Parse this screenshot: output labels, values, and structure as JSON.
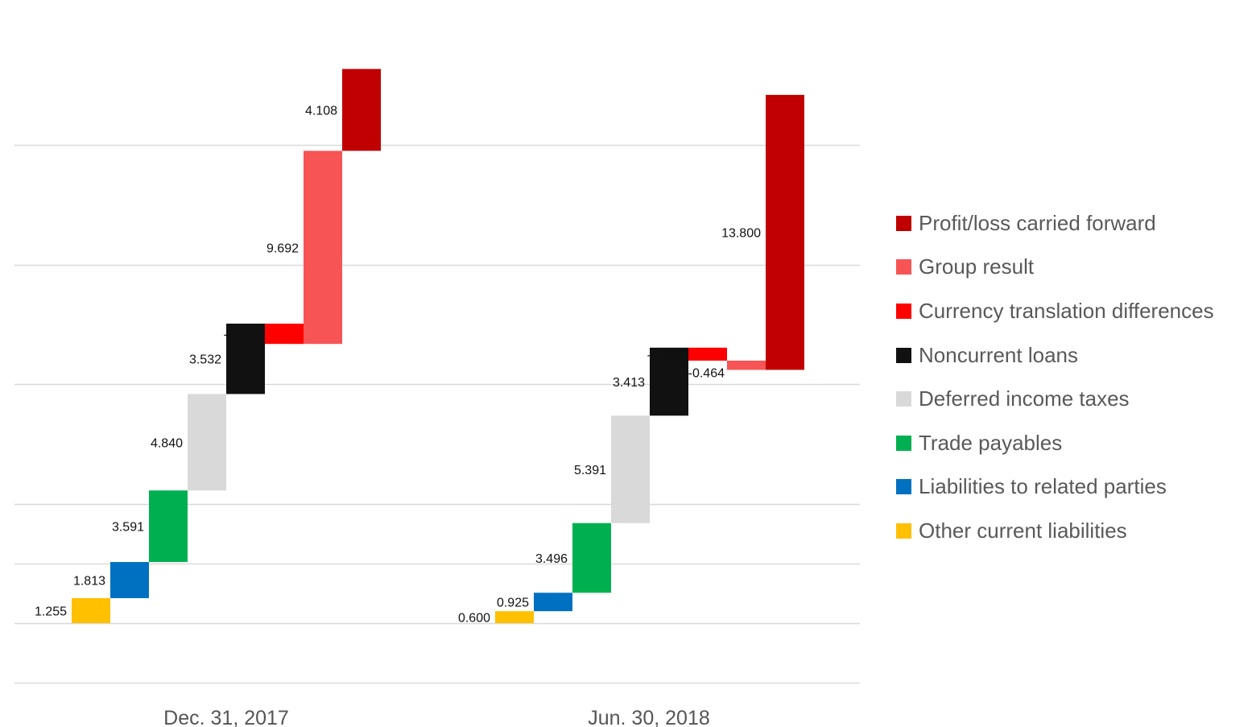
{
  "chart_data": {
    "type": "waterfall",
    "categories": [
      "Dec. 31, 2017",
      "Jun. 30, 2018"
    ],
    "grid": true,
    "legend_position": "right",
    "series": [
      {
        "name": "Other current liabilities",
        "color": "#FFC000",
        "values": [
          1.255,
          0.6
        ],
        "labels": [
          "1.255",
          "0.600"
        ]
      },
      {
        "name": "Liabilities to related parties",
        "color": "#0070C0",
        "values": [
          1.813,
          0.925
        ],
        "labels": [
          "1.813",
          "0.925"
        ]
      },
      {
        "name": "Trade payables",
        "color": "#00B050",
        "values": [
          3.591,
          3.496
        ],
        "labels": [
          "3.591",
          "3.496"
        ]
      },
      {
        "name": "Deferred income taxes",
        "color": "#D9D9D9",
        "values": [
          4.84,
          5.391
        ],
        "labels": [
          "4.840",
          "5.391"
        ]
      },
      {
        "name": "Noncurrent loans",
        "color": "#111111",
        "values": [
          3.532,
          3.413
        ],
        "labels": [
          "3.532",
          "3.413"
        ]
      },
      {
        "name": "Currency translation differences",
        "color": "#FF0000",
        "values": [
          -1.019,
          -0.65
        ],
        "labels": [
          "-1.019",
          "-0.650"
        ]
      },
      {
        "name": "Group result",
        "color": "#F75555",
        "values": [
          9.692,
          -0.464
        ],
        "labels": [
          "9.692",
          "-0.464"
        ]
      },
      {
        "name": "Profit/loss carried forward",
        "color": "#C00000",
        "values": [
          4.108,
          13.8
        ],
        "labels": [
          "4.108",
          "13.800"
        ]
      }
    ],
    "group_start_offsets": [
      0,
      0
    ],
    "ylim": [
      -3,
      28
    ],
    "gridlines": [
      -3,
      0,
      3,
      6,
      12,
      18,
      24
    ]
  },
  "legend": {
    "order": [
      7,
      6,
      5,
      4,
      3,
      2,
      1,
      0
    ]
  }
}
